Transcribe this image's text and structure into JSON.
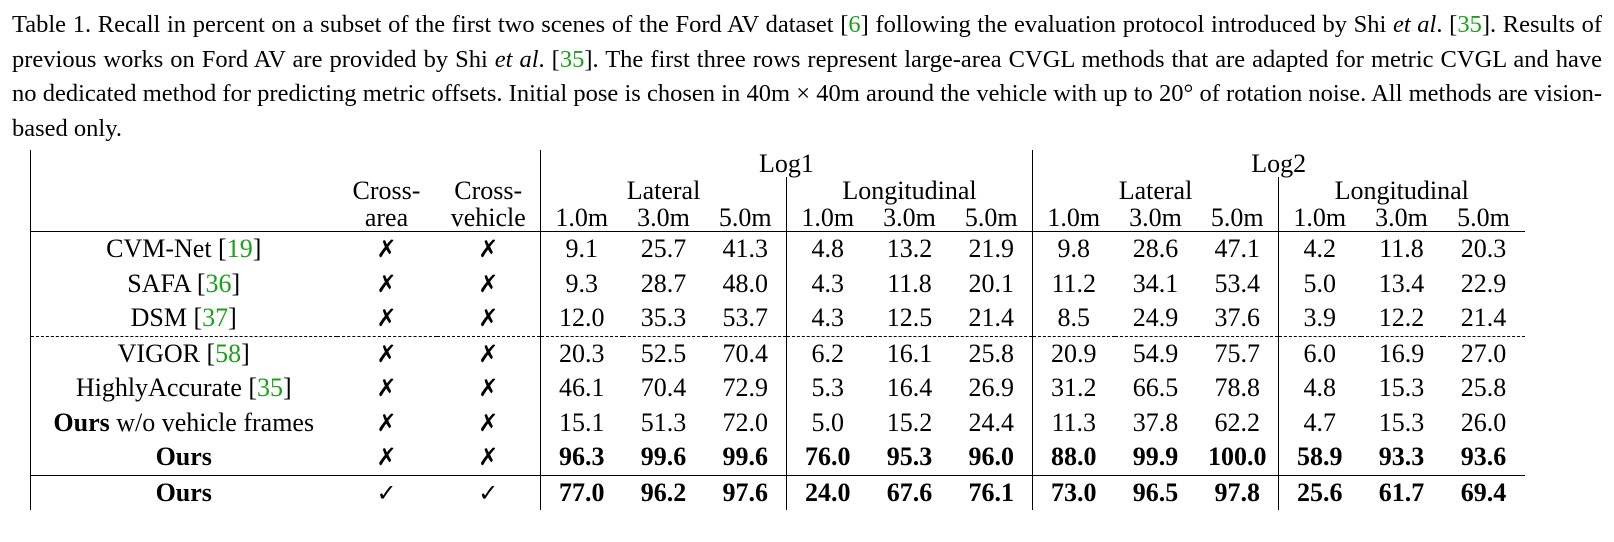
{
  "caption": {
    "p1": "Table 1. Recall in percent on a subset of the first two scenes of the Ford AV dataset [",
    "r1": "6",
    "p2": "] following the evaluation protocol introduced by Shi ",
    "etal1": "et al",
    "p3": ". [",
    "r2": "35",
    "p4": "]. Results of previous works on Ford AV are provided by Shi ",
    "etal2": "et al",
    "p5": ". [",
    "r3": "35",
    "p6": "]. The first three rows represent large-area CVGL methods that are adapted for metric CVGL and have no dedicated method for predicting metric offsets. Initial pose is chosen in 40m × 40m around the vehicle with up to 20° of rotation noise. All methods are vision-based only."
  },
  "header": {
    "log1": "Log1",
    "log2": "Log2",
    "cross_area_1": "Cross-",
    "cross_area_2": "area",
    "cross_vehicle_1": "Cross-",
    "cross_vehicle_2": "vehicle",
    "lateral": "Lateral",
    "longitudinal": "Longitudinal",
    "thresholds": [
      "1.0m",
      "3.0m",
      "5.0m"
    ]
  },
  "rows": [
    {
      "method": "CVM-Net [",
      "ref": "19",
      "suffix": "]",
      "bold": false,
      "ca": "✗",
      "cv": "✗",
      "vals": [
        "9.1",
        "25.7",
        "41.3",
        "4.8",
        "13.2",
        "21.9",
        "9.8",
        "28.6",
        "47.1",
        "4.2",
        "11.8",
        "20.3"
      ]
    },
    {
      "method": "SAFA [",
      "ref": "36",
      "suffix": "]",
      "bold": false,
      "ca": "✗",
      "cv": "✗",
      "vals": [
        "9.3",
        "28.7",
        "48.0",
        "4.3",
        "11.8",
        "20.1",
        "11.2",
        "34.1",
        "53.4",
        "5.0",
        "13.4",
        "22.9"
      ]
    },
    {
      "method": "DSM [",
      "ref": "37",
      "suffix": "]",
      "bold": false,
      "ca": "✗",
      "cv": "✗",
      "vals": [
        "12.0",
        "35.3",
        "53.7",
        "4.3",
        "12.5",
        "21.4",
        "8.5",
        "24.9",
        "37.6",
        "3.9",
        "12.2",
        "21.4"
      ]
    },
    {
      "method": "VIGOR [",
      "ref": "58",
      "suffix": "]",
      "bold": false,
      "ca": "✗",
      "cv": "✗",
      "vals": [
        "20.3",
        "52.5",
        "70.4",
        "6.2",
        "16.1",
        "25.8",
        "20.9",
        "54.9",
        "75.7",
        "6.0",
        "16.9",
        "27.0"
      ]
    },
    {
      "method": "HighlyAccurate [",
      "ref": "35",
      "suffix": "]",
      "bold": false,
      "ca": "✗",
      "cv": "✗",
      "vals": [
        "46.1",
        "70.4",
        "72.9",
        "5.3",
        "16.4",
        "26.9",
        "31.2",
        "66.5",
        "78.8",
        "4.8",
        "15.3",
        "25.8"
      ]
    },
    {
      "method_bold": "Ours",
      "method_rest": " w/o vehicle frames",
      "bold": false,
      "ca": "✗",
      "cv": "✗",
      "vals": [
        "15.1",
        "51.3",
        "72.0",
        "5.0",
        "15.2",
        "24.4",
        "11.3",
        "37.8",
        "62.2",
        "4.7",
        "15.3",
        "26.0"
      ]
    },
    {
      "method": "Ours",
      "bold": true,
      "ca": "✗",
      "cv": "✗",
      "vals": [
        "96.3",
        "99.6",
        "99.6",
        "76.0",
        "95.3",
        "96.0",
        "88.0",
        "99.9",
        "100.0",
        "58.9",
        "93.3",
        "93.6"
      ]
    },
    {
      "method": "Ours",
      "bold": true,
      "ca": "✓",
      "cv": "✓",
      "vals": [
        "77.0",
        "96.2",
        "97.6",
        "24.0",
        "67.6",
        "76.1",
        "73.0",
        "96.5",
        "97.8",
        "25.6",
        "61.7",
        "69.4"
      ]
    }
  ]
}
